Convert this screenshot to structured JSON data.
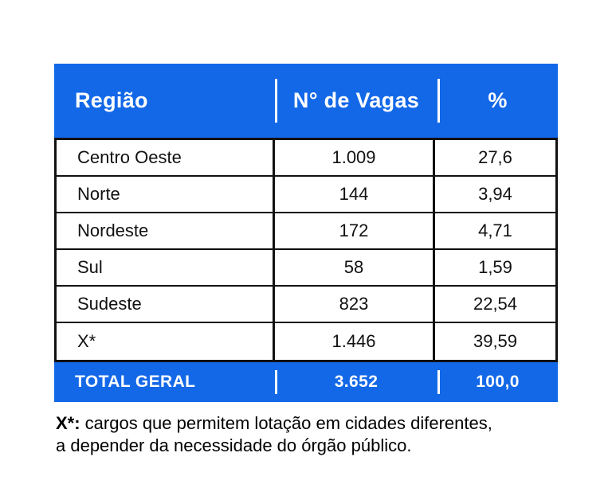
{
  "colors": {
    "accent_blue": "#1368e8",
    "ink": "#111111"
  },
  "table": {
    "headers": {
      "region": "Região",
      "vagas": "N° de Vagas",
      "percent": "%"
    },
    "rows": [
      {
        "region": "Centro Oeste",
        "vagas": "1.009",
        "percent": "27,6"
      },
      {
        "region": "Norte",
        "vagas": "144",
        "percent": "3,94"
      },
      {
        "region": "Nordeste",
        "vagas": "172",
        "percent": "4,71"
      },
      {
        "region": "Sul",
        "vagas": "58",
        "percent": "1,59"
      },
      {
        "region": "Sudeste",
        "vagas": "823",
        "percent": "22,54"
      },
      {
        "region": "X*",
        "vagas": "1.446",
        "percent": "39,59"
      }
    ],
    "total": {
      "label": "TOTAL GERAL",
      "vagas": "3.652",
      "percent": "100,0"
    }
  },
  "footnote": {
    "prefix": "X*:",
    "line1": " cargos que permitem lotação em cidades diferentes,",
    "line2": "a depender da necessidade do órgão público."
  },
  "chart_data": {
    "type": "table",
    "title": "",
    "columns": [
      "Região",
      "N° de Vagas",
      "%"
    ],
    "rows": [
      [
        "Centro Oeste",
        1009,
        27.6
      ],
      [
        "Norte",
        144,
        3.94
      ],
      [
        "Nordeste",
        172,
        4.71
      ],
      [
        "Sul",
        58,
        1.59
      ],
      [
        "Sudeste",
        823,
        22.54
      ],
      [
        "X*",
        1446,
        39.59
      ]
    ],
    "total_row": [
      "TOTAL GERAL",
      3652,
      100.0
    ],
    "footnote": "X*: cargos que permitem lotação em cidades diferentes, a depender da necessidade do órgão público."
  }
}
